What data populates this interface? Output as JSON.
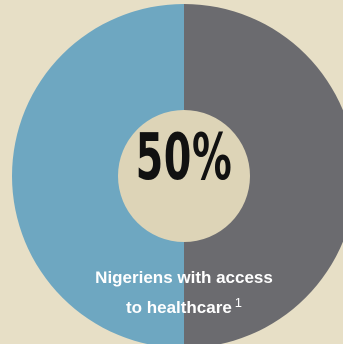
{
  "chart_data": {
    "type": "pie",
    "style": "donut",
    "slices": [
      {
        "label": "Nigeriens with access to healthcare",
        "value": 50,
        "color": "#6ea7c1"
      },
      {
        "label": "",
        "value": 50,
        "color": "#6b6b6f"
      }
    ],
    "center_value": "50%",
    "caption_line1": "Nigeriens with access",
    "caption_line2": "to healthcare",
    "footnote_marker": "1"
  },
  "colors": {
    "background": "#e7dfc6",
    "center_fill": "#ddd4b7",
    "text_dark": "#111111",
    "text_light": "#ffffff"
  }
}
